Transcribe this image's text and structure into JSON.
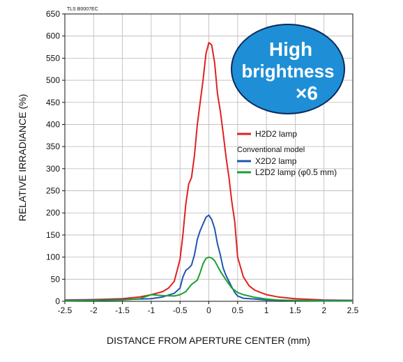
{
  "chart_data": {
    "type": "line",
    "code_label": "TLS B0007EC",
    "xlabel": "DISTANCE FROM APERTURE CENTER (mm)",
    "ylabel": "RELATIVE IRRADIANCE (%)",
    "xlim": [
      -2.5,
      2.5
    ],
    "ylim": [
      0,
      650
    ],
    "x_ticks": [
      -2.5,
      -2,
      -1.5,
      -1,
      -0.5,
      0,
      0.5,
      1,
      1.5,
      2,
      2.5
    ],
    "x_tick_labels": [
      "-2.5",
      "-2",
      "-1.5",
      "-1",
      "-0.5",
      "0",
      "0.5",
      "1",
      "1.5",
      "2",
      "2.5"
    ],
    "y_ticks": [
      0,
      50,
      100,
      150,
      200,
      250,
      300,
      350,
      400,
      450,
      500,
      550,
      600,
      650
    ],
    "y_tick_labels": [
      "0",
      "50",
      "100",
      "150",
      "200",
      "250",
      "300",
      "350",
      "400",
      "450",
      "500",
      "550",
      "600",
      "650"
    ],
    "grid": true,
    "legend_position": "right-middle",
    "legend_subheading": "Conventional model",
    "badge": {
      "line1": "High",
      "line2": "brightness",
      "line3": "×6",
      "color": "#1e8fd6"
    },
    "series": [
      {
        "name": "H2D2 lamp",
        "color": "#e02020",
        "x": [
          -2.5,
          -2.0,
          -1.5,
          -1.2,
          -1.0,
          -0.8,
          -0.7,
          -0.6,
          -0.5,
          -0.45,
          -0.4,
          -0.35,
          -0.3,
          -0.25,
          -0.2,
          -0.15,
          -0.1,
          -0.05,
          0,
          0.05,
          0.1,
          0.15,
          0.2,
          0.25,
          0.3,
          0.35,
          0.4,
          0.45,
          0.5,
          0.6,
          0.7,
          0.8,
          1.0,
          1.2,
          1.5,
          2.0,
          2.5
        ],
        "y": [
          3,
          4,
          6,
          10,
          15,
          22,
          30,
          45,
          95,
          150,
          220,
          265,
          280,
          330,
          400,
          450,
          500,
          560,
          585,
          580,
          540,
          470,
          430,
          380,
          325,
          280,
          225,
          180,
          100,
          55,
          35,
          25,
          15,
          10,
          6,
          3,
          2
        ]
      },
      {
        "name": "X2D2 lamp",
        "color": "#1f55b0",
        "x": [
          -2.5,
          -2.0,
          -1.5,
          -1.0,
          -0.8,
          -0.6,
          -0.5,
          -0.45,
          -0.4,
          -0.35,
          -0.3,
          -0.25,
          -0.2,
          -0.15,
          -0.1,
          -0.05,
          0,
          0.05,
          0.1,
          0.15,
          0.2,
          0.25,
          0.3,
          0.35,
          0.4,
          0.45,
          0.5,
          0.6,
          0.8,
          1.0,
          1.5,
          2.0,
          2.5
        ],
        "y": [
          2,
          3,
          4,
          6,
          10,
          18,
          30,
          55,
          70,
          75,
          82,
          105,
          140,
          160,
          175,
          190,
          195,
          185,
          165,
          130,
          105,
          75,
          58,
          45,
          32,
          20,
          12,
          7,
          5,
          3,
          2,
          2,
          2
        ]
      },
      {
        "name": "L2D2 lamp (φ0.5 mm)",
        "color": "#1aa032",
        "x": [
          -2.5,
          -2.0,
          -1.5,
          -1.2,
          -1.0,
          -0.8,
          -0.6,
          -0.5,
          -0.4,
          -0.3,
          -0.2,
          -0.15,
          -0.1,
          -0.05,
          0,
          0.05,
          0.1,
          0.15,
          0.2,
          0.3,
          0.4,
          0.5,
          0.6,
          0.8,
          1.0,
          1.2,
          1.5,
          2.0,
          2.5
        ],
        "y": [
          1,
          2,
          3,
          6,
          15,
          13,
          12,
          15,
          22,
          38,
          48,
          65,
          85,
          97,
          100,
          98,
          92,
          80,
          68,
          48,
          30,
          20,
          15,
          9,
          5,
          3,
          2,
          1,
          1
        ]
      }
    ]
  }
}
